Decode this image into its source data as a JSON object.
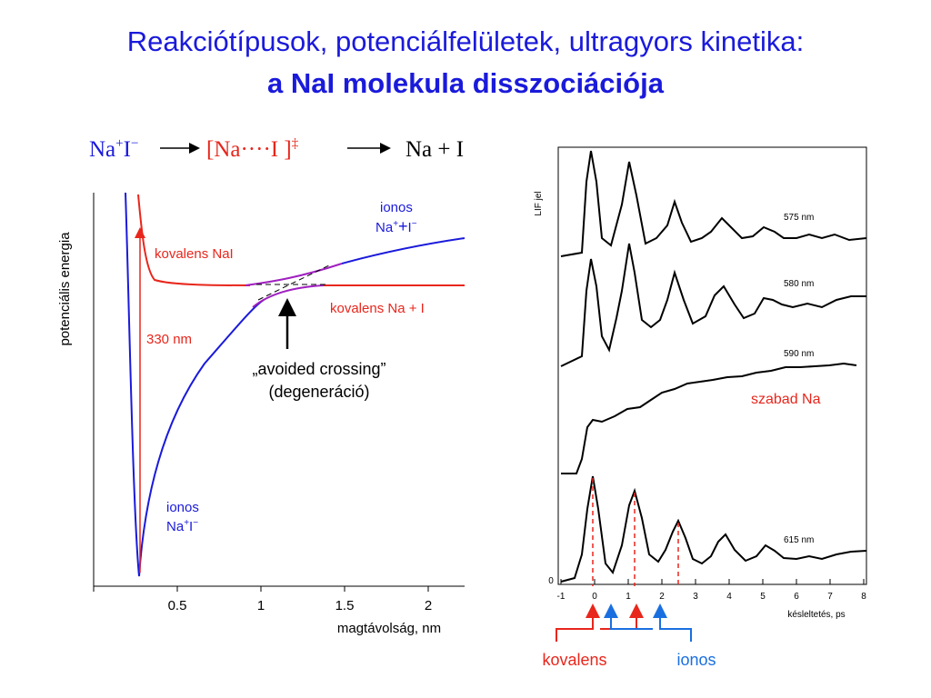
{
  "slide": {
    "title_line1": "Reakciótípusok, potenciálfelületek, ultragyors kinetika:",
    "title_line2": "a NaI molekula disszociációja"
  },
  "reaction": {
    "reactant_base": "Na",
    "reactant_plus": "+",
    "reactant_I": "I",
    "reactant_minus": "−",
    "transition_state": "[Na····I ]",
    "ts_dagger": "‡",
    "product": "Na + I",
    "colors": {
      "reactant": "#1a1adb",
      "transition": "#e8261c",
      "product": "#000000"
    }
  },
  "potential_plot": {
    "ylabel": "potenciális energia",
    "xlabel": "magtávolság, nm",
    "xticks": [
      "0.5",
      "1",
      "1.5",
      "2"
    ],
    "labels": {
      "ionic_top_1": "ionos",
      "ionic_top_2": "Na",
      "ionic_top_plus": "+",
      "ionic_top_plus2": "+",
      "ionic_top_I": "I",
      "ionic_top_minus": "−",
      "covalent_nai": "kovalens NaI",
      "covalent_na_i": "kovalens Na + I",
      "excitation": "330 nm",
      "avoided_crossing": "„avoided crossing”",
      "degeneracy": "(degeneráció)",
      "ionic_bottom_1": "ionos",
      "ionic_bottom_na": "Na",
      "ionic_bottom_plus": "+",
      "ionic_bottom_I": "I",
      "ionic_bottom_minus": "−"
    },
    "colors": {
      "ionic": "#1a1adb",
      "covalent": "#e8261c",
      "crossing": "#a020c0"
    }
  },
  "lif_plot": {
    "ylabel": "LIF jel",
    "xlabel": "késleltetés, ps",
    "xticks": [
      "-1",
      "0",
      "1",
      "2",
      "3",
      "4",
      "5",
      "6",
      "7",
      "8"
    ],
    "ytick_zero": "0",
    "traces": [
      "575 nm",
      "580 nm",
      "590 nm",
      "615 nm"
    ],
    "free_na_label": "szabad Na",
    "covalent_label": "kovalens",
    "ionic_label": "ionos",
    "colors": {
      "covalent": "#e8261c",
      "ionic": "#1a6fe0"
    }
  }
}
